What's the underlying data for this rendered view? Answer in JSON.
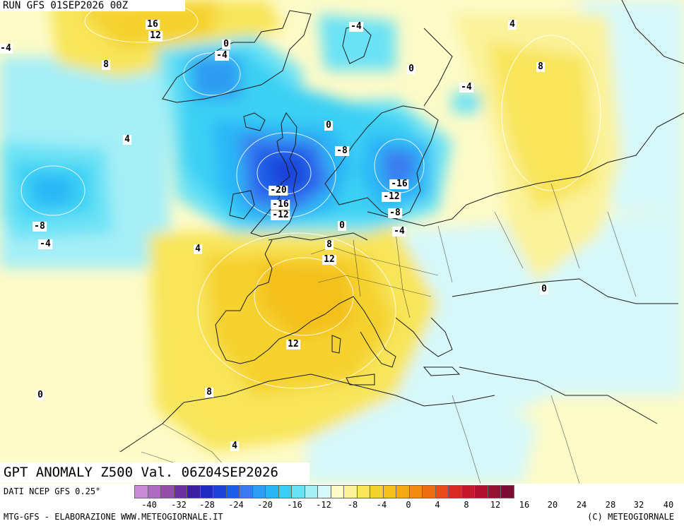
{
  "header": {
    "run_label": "RUN GFS 01SEP2026 00Z"
  },
  "map": {
    "title": "GPT ANOMALY Z500 Val. 06Z04SEP2026",
    "contour_labels": [
      "16",
      "12",
      "8",
      "-4",
      "0",
      "-4",
      "-4",
      "0",
      "-4",
      "4",
      "8",
      "4",
      "0",
      "-8",
      "-20",
      "-16",
      "-12",
      "-16",
      "-12",
      "-8",
      "-4",
      "0",
      "8",
      "12",
      "4",
      "-8",
      "-4",
      "12",
      "8",
      "0",
      "4",
      "0"
    ]
  },
  "legend": {
    "colors": [
      "#c98ad6",
      "#ad6cc1",
      "#9450a8",
      "#6a32a0",
      "#3d1fa5",
      "#1f2bbf",
      "#1a41d8",
      "#1a5de8",
      "#3b7bf0",
      "#2f9bf2",
      "#2ab6f6",
      "#3ad0f4",
      "#6ae2f5",
      "#a5eff7",
      "#d6f8fa",
      "#fdfbc8",
      "#fbf29a",
      "#f8e55a",
      "#f5d22d",
      "#f4c01a",
      "#f3a816",
      "#f28d12",
      "#ef6e12",
      "#e84a1a",
      "#d92a24",
      "#c6172c",
      "#b0112f",
      "#961034",
      "#7e0b33"
    ],
    "ticks": [
      "-40",
      "-32",
      "-28",
      "-24",
      "-20",
      "-16",
      "-12",
      "-8",
      "-4",
      "0",
      "4",
      "8",
      "12",
      "16",
      "20",
      "24",
      "28",
      "32",
      "40"
    ]
  },
  "footer": {
    "data_source": "DATI NCEP GFS 0.25°",
    "credit_left": "MTG-GFS - ELABORAZIONE WWW.METEOGIORNALE.IT",
    "credit_right": "(C) METEOGIORNALE"
  }
}
